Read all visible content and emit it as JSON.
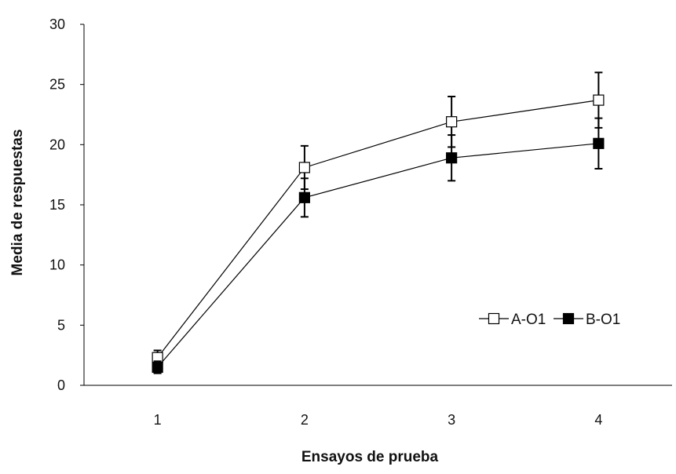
{
  "chart_data": {
    "type": "line",
    "categories": [
      "1",
      "2",
      "3",
      "4"
    ],
    "series": [
      {
        "name": "A-O1",
        "marker": "open-square",
        "values": [
          2.3,
          18.1,
          21.9,
          23.7
        ],
        "error": [
          0.6,
          1.8,
          2.1,
          2.3
        ]
      },
      {
        "name": "B-O1",
        "marker": "filled-square",
        "values": [
          1.5,
          15.6,
          18.9,
          20.1
        ],
        "error": [
          0.5,
          1.6,
          1.9,
          2.1
        ]
      }
    ],
    "xlabel": "Ensayos de prueba",
    "ylabel": "Media de respuestas",
    "ylim": [
      0,
      30
    ],
    "yticks": [
      0,
      5,
      10,
      15,
      20,
      25,
      30
    ],
    "grid": false,
    "legend_position": "right",
    "colors": {
      "line": "#000000",
      "marker_edge": "#000000",
      "open_fill": "#ffffff",
      "filled_fill": "#000000"
    }
  }
}
